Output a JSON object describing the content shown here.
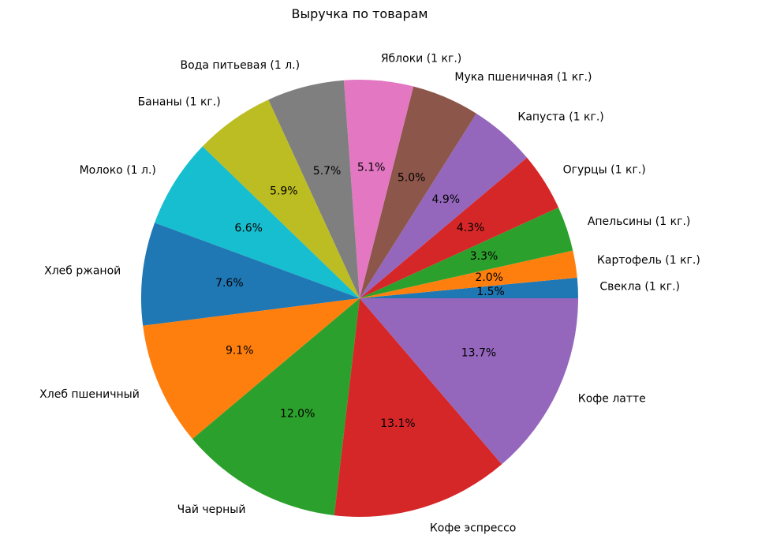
{
  "chart_data": {
    "type": "pie",
    "title": "Выручка по товарам",
    "start_angle_deg": 0,
    "direction": "counterclockwise",
    "slices": [
      {
        "label": "Свекла (1 кг.)",
        "value": 1.5,
        "pct_label": "1.5%",
        "color": "#1f77b4"
      },
      {
        "label": "Картофель (1 кг.)",
        "value": 2.0,
        "pct_label": "2.0%",
        "color": "#ff7f0e"
      },
      {
        "label": "Апельсины (1 кг.)",
        "value": 3.3,
        "pct_label": "3.3%",
        "color": "#2ca02c"
      },
      {
        "label": "Огурцы (1 кг.)",
        "value": 4.3,
        "pct_label": "4.3%",
        "color": "#d62728"
      },
      {
        "label": "Капуста (1 кг.)",
        "value": 4.9,
        "pct_label": "4.9%",
        "color": "#9467bd"
      },
      {
        "label": "Мука пшеничная (1 кг.)",
        "value": 5.0,
        "pct_label": "5.0%",
        "color": "#8c564b"
      },
      {
        "label": "Яблоки (1 кг.)",
        "value": 5.1,
        "pct_label": "5.1%",
        "color": "#e377c2"
      },
      {
        "label": "Вода питьевая (1 л.)",
        "value": 5.7,
        "pct_label": "5.7%",
        "color": "#7f7f7f"
      },
      {
        "label": "Бананы (1 кг.)",
        "value": 5.9,
        "pct_label": "5.9%",
        "color": "#bcbd22"
      },
      {
        "label": "Молоко (1 л.)",
        "value": 6.6,
        "pct_label": "6.6%",
        "color": "#17becf"
      },
      {
        "label": "Хлеб ржаной",
        "value": 7.6,
        "pct_label": "7.6%",
        "color": "#1f77b4"
      },
      {
        "label": "Хлеб пшеничный",
        "value": 9.1,
        "pct_label": "9.1%",
        "color": "#ff7f0e"
      },
      {
        "label": "Чай черный",
        "value": 12.0,
        "pct_label": "12.0%",
        "color": "#2ca02c"
      },
      {
        "label": "Кофе эспрессо",
        "value": 13.1,
        "pct_label": "13.1%",
        "color": "#d62728"
      },
      {
        "label": "Кофе латте",
        "value": 13.7,
        "pct_label": "13.7%",
        "color": "#9467bd"
      }
    ]
  }
}
